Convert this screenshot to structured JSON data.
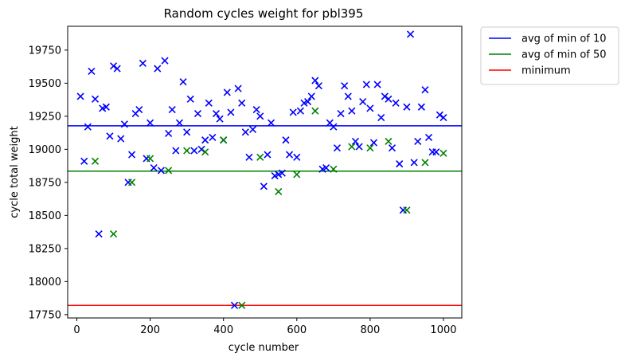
{
  "chart_data": {
    "type": "scatter",
    "title": "Random cycles weight for pbl395",
    "xlabel": "cycle number",
    "ylabel": "cycle total weight",
    "xlim": [
      -25,
      1050
    ],
    "ylim": [
      17725,
      19930
    ],
    "xticks": [
      0,
      200,
      400,
      600,
      800,
      1000
    ],
    "yticks": [
      17750,
      18000,
      18250,
      18500,
      18750,
      19000,
      19250,
      19500,
      19750
    ],
    "marker": "x",
    "legend_position": "outside-top-right",
    "series": [
      {
        "color": "#0000ff",
        "points": [
          [
            10,
            19400
          ],
          [
            20,
            18910
          ],
          [
            30,
            19170
          ],
          [
            40,
            19590
          ],
          [
            50,
            19380
          ],
          [
            60,
            18360
          ],
          [
            70,
            19310
          ],
          [
            80,
            19320
          ],
          [
            90,
            19100
          ],
          [
            100,
            19630
          ],
          [
            110,
            19610
          ],
          [
            120,
            19080
          ],
          [
            130,
            19190
          ],
          [
            140,
            18750
          ],
          [
            150,
            18960
          ],
          [
            160,
            19270
          ],
          [
            170,
            19300
          ],
          [
            180,
            19650
          ],
          [
            190,
            18930
          ],
          [
            200,
            19200
          ],
          [
            210,
            18860
          ],
          [
            220,
            19610
          ],
          [
            230,
            18840
          ],
          [
            240,
            19670
          ],
          [
            250,
            19120
          ],
          [
            260,
            19300
          ],
          [
            270,
            18990
          ],
          [
            280,
            19200
          ],
          [
            290,
            19510
          ],
          [
            300,
            19130
          ],
          [
            310,
            19380
          ],
          [
            320,
            18990
          ],
          [
            330,
            19270
          ],
          [
            340,
            19000
          ],
          [
            350,
            19070
          ],
          [
            360,
            19350
          ],
          [
            370,
            19090
          ],
          [
            380,
            19270
          ],
          [
            390,
            19230
          ],
          [
            400,
            19070
          ],
          [
            410,
            19430
          ],
          [
            420,
            19280
          ],
          [
            430,
            17820
          ],
          [
            440,
            19460
          ],
          [
            450,
            19350
          ],
          [
            460,
            19130
          ],
          [
            470,
            18940
          ],
          [
            480,
            19150
          ],
          [
            490,
            19300
          ],
          [
            500,
            19250
          ],
          [
            510,
            18720
          ],
          [
            520,
            18960
          ],
          [
            530,
            19200
          ],
          [
            540,
            18800
          ],
          [
            550,
            18810
          ],
          [
            560,
            18820
          ],
          [
            570,
            19070
          ],
          [
            580,
            18960
          ],
          [
            590,
            19280
          ],
          [
            600,
            18940
          ],
          [
            610,
            19290
          ],
          [
            620,
            19350
          ],
          [
            630,
            19360
          ],
          [
            640,
            19400
          ],
          [
            650,
            19520
          ],
          [
            660,
            19480
          ],
          [
            670,
            18850
          ],
          [
            680,
            18860
          ],
          [
            690,
            19200
          ],
          [
            700,
            19170
          ],
          [
            710,
            19010
          ],
          [
            720,
            19270
          ],
          [
            730,
            19480
          ],
          [
            740,
            19400
          ],
          [
            750,
            19290
          ],
          [
            760,
            19060
          ],
          [
            770,
            19020
          ],
          [
            780,
            19360
          ],
          [
            790,
            19490
          ],
          [
            800,
            19310
          ],
          [
            810,
            19050
          ],
          [
            820,
            19490
          ],
          [
            830,
            19240
          ],
          [
            840,
            19400
          ],
          [
            850,
            19380
          ],
          [
            860,
            19010
          ],
          [
            870,
            19350
          ],
          [
            880,
            18890
          ],
          [
            890,
            18540
          ],
          [
            900,
            19320
          ],
          [
            910,
            19870
          ],
          [
            920,
            18900
          ],
          [
            930,
            19060
          ],
          [
            940,
            19320
          ],
          [
            950,
            19450
          ],
          [
            960,
            19090
          ],
          [
            970,
            18980
          ],
          [
            980,
            18980
          ],
          [
            990,
            19260
          ],
          [
            1000,
            19240
          ]
        ]
      },
      {
        "color": "#008000",
        "points": [
          [
            50,
            18910
          ],
          [
            100,
            18360
          ],
          [
            150,
            18750
          ],
          [
            200,
            18930
          ],
          [
            250,
            18840
          ],
          [
            300,
            18990
          ],
          [
            350,
            18980
          ],
          [
            400,
            19070
          ],
          [
            450,
            17820
          ],
          [
            500,
            18940
          ],
          [
            550,
            18680
          ],
          [
            600,
            18810
          ],
          [
            650,
            19290
          ],
          [
            700,
            18850
          ],
          [
            750,
            19020
          ],
          [
            800,
            19010
          ],
          [
            850,
            19060
          ],
          [
            900,
            18540
          ],
          [
            950,
            18900
          ],
          [
            1000,
            18970
          ]
        ]
      }
    ],
    "hlines": [
      {
        "name": "avg of min of 10",
        "value": 19178,
        "color": "#0000ff"
      },
      {
        "name": "avg of min of 50",
        "value": 18835,
        "color": "#008000"
      },
      {
        "name": "minimum",
        "value": 17820,
        "color": "#ff0000"
      }
    ]
  }
}
